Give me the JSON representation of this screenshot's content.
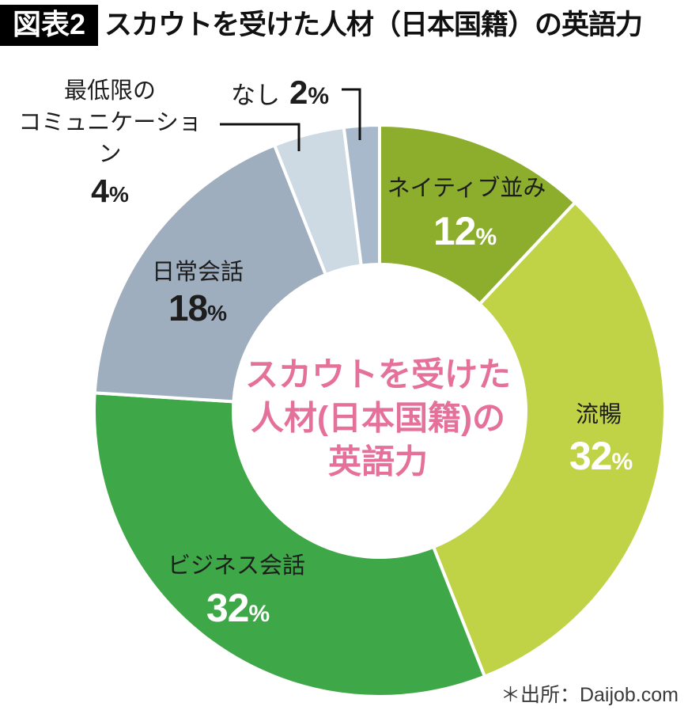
{
  "header": {
    "badge": "図表2",
    "title": "スカウトを受けた人材（日本国籍）の英語力"
  },
  "center_title": {
    "lines": [
      "スカウトを受けた",
      "人材(日本国籍)の",
      "英語力"
    ],
    "color": "#e5719b"
  },
  "source": "＊出所：Daijob.com",
  "chart_data": {
    "type": "pie",
    "subtype": "donut",
    "title": "スカウトを受けた人材（日本国籍）の英語力",
    "unit": "%",
    "direction": "clockwise",
    "start_angle_deg": 0,
    "separator_color": "#ffffff",
    "legend_position": "on-slice",
    "segments": [
      {
        "id": "native",
        "label": "ネイティブ並み",
        "value": 12,
        "color": "#8cae2c",
        "value_text_color": "#ffffff"
      },
      {
        "id": "fluent",
        "label": "流暢",
        "value": 32,
        "color": "#c0d347",
        "value_text_color": "#ffffff"
      },
      {
        "id": "business",
        "label": "ビジネス会話",
        "value": 32,
        "color": "#3ea748",
        "value_text_color": "#ffffff"
      },
      {
        "id": "daily",
        "label": "日常会話",
        "value": 18,
        "color": "#9faebe",
        "value_text_color": "#1d1d1d"
      },
      {
        "id": "minimal",
        "label": "最低限のコミュニケーション",
        "label_lines": [
          "最低限の",
          "コミュニケーション"
        ],
        "value": 4,
        "color": "#cddae3",
        "value_text_color": "#1d1d1d"
      },
      {
        "id": "none",
        "label": "なし",
        "value": 2,
        "color": "#a8b9cb",
        "value_text_color": "#1d1d1d"
      }
    ]
  }
}
